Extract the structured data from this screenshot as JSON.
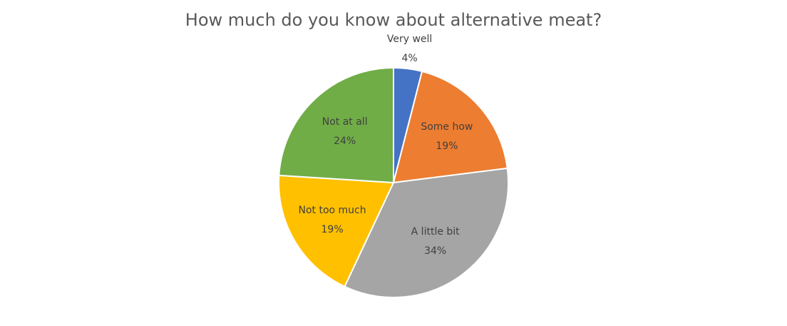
{
  "chart_data": {
    "type": "pie",
    "title": "How much do you know about alternative meat?",
    "categories": [
      "Very well",
      "Some how",
      "A little bit",
      "Not too much",
      "Not at all"
    ],
    "values": [
      4,
      19,
      34,
      19,
      24
    ],
    "value_labels": [
      "4%",
      "19%",
      "34%",
      "19%",
      "24%"
    ],
    "colors": [
      "#4472C4",
      "#ED7D31",
      "#A5A5A5",
      "#FFC000",
      "#70AD47"
    ],
    "start_angle_deg": 0,
    "direction": "clockwise",
    "legend": "none",
    "data_labels": "category and percentage"
  }
}
